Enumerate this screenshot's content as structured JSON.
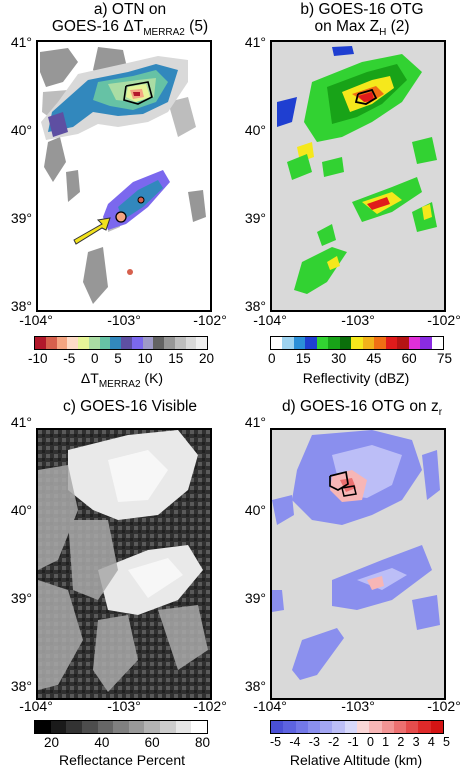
{
  "panels": {
    "a": {
      "title1": "a) OTN on",
      "title2_pre": "GOES-16 ΔT",
      "title2_sub": "MERRA2",
      "title2_post": " (5)"
    },
    "b": {
      "title1": "b) GOES-16 OTG",
      "title2_pre": "on Max Z",
      "title2_sub": "H",
      "title2_post": " (2)"
    },
    "c": {
      "title1": "c) GOES-16 Visible"
    },
    "d": {
      "title1": "d) GOES-16 OTG on z",
      "title1_sub": "r"
    }
  },
  "axes": {
    "lat_ticks": [
      "41°",
      "40°",
      "39°",
      "38°"
    ],
    "lon_ticks": [
      "-104°",
      "-103°",
      "-102°"
    ]
  },
  "colorbars": {
    "a": {
      "ticks": [
        "-10",
        "-5",
        "0",
        "5",
        "10",
        "15",
        "20"
      ],
      "label_pre": "ΔT",
      "label_sub": "MERRA2",
      "label_post": " (K)",
      "colors": [
        "#b2182b",
        "#d6604d",
        "#f4a582",
        "#fddbc7",
        "#e6f598",
        "#abdda4",
        "#66c2a5",
        "#3288bd",
        "#5e4fa2",
        "#7b68ee",
        "#9e9ac8",
        "#636363",
        "#969696",
        "#bdbdbd",
        "#d9d9d9",
        "#f0f0f0"
      ]
    },
    "b": {
      "ticks": [
        "0",
        "15",
        "30",
        "45",
        "60",
        "75"
      ],
      "label": "Reflectivity (dBZ)",
      "colors": [
        "#ffffff",
        "#9ed3f0",
        "#2b8fd8",
        "#1f3fd1",
        "#32d232",
        "#18a318",
        "#0b6f0b",
        "#f5e81c",
        "#f2b21a",
        "#f06f14",
        "#e01b1b",
        "#b51414",
        "#e02fd8",
        "#8a2be2",
        "#ffffff"
      ]
    },
    "c": {
      "ticks": [
        "20",
        "40",
        "60",
        "80"
      ],
      "label": "Reflectance Percent",
      "colors": [
        "#000000",
        "#1a1a1a",
        "#333333",
        "#4d4d4d",
        "#666666",
        "#808080",
        "#999999",
        "#b3b3b3",
        "#cccccc",
        "#e6e6e6",
        "#ffffff"
      ]
    },
    "d": {
      "ticks": [
        "-5",
        "-4",
        "-3",
        "-2",
        "-1",
        "0",
        "1",
        "2",
        "3",
        "4",
        "5"
      ],
      "label": "Relative Altitude (km)",
      "colors": [
        "#4a50d6",
        "#5d63e0",
        "#7378e8",
        "#8a8fee",
        "#a3a6f3",
        "#bcbef7",
        "#d7d8fa",
        "#fad7d7",
        "#f7b6b6",
        "#f29494",
        "#ec7070",
        "#e54c4c",
        "#de2a2a",
        "#d41414"
      ]
    }
  }
}
